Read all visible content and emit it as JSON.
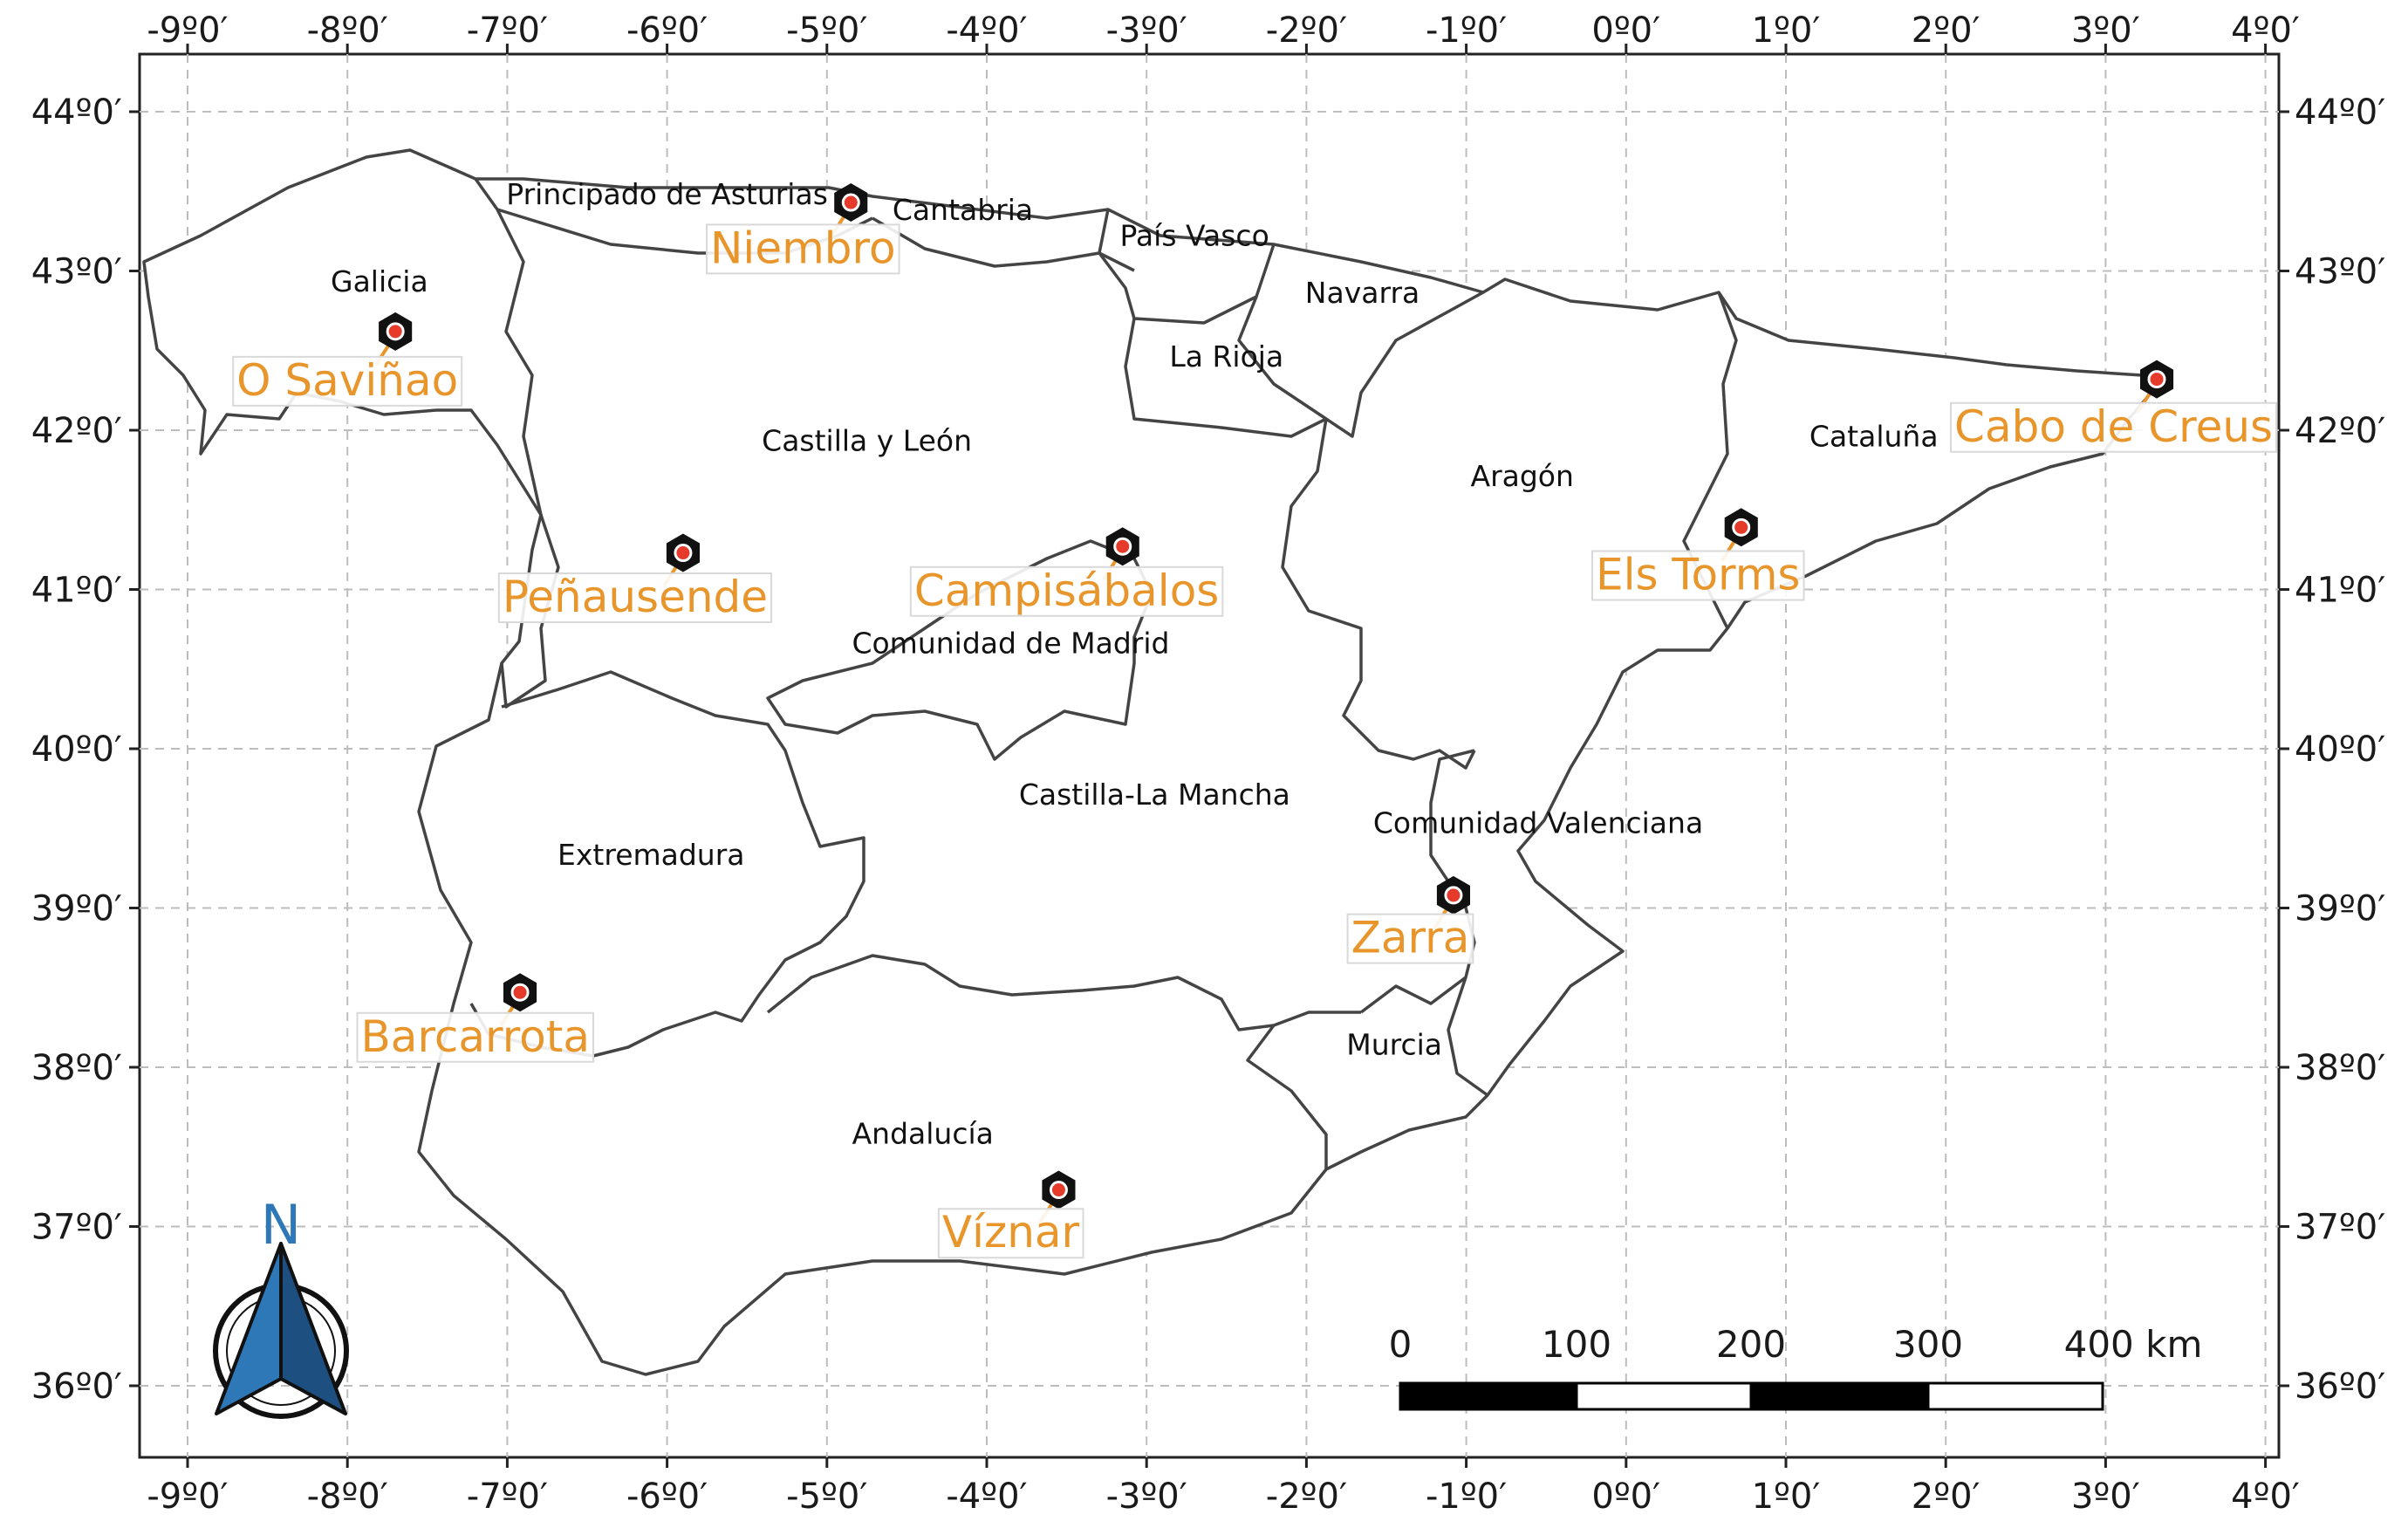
{
  "map": {
    "lon_ticks": [
      "-9º0′",
      "-8º0′",
      "-7º0′",
      "-6º0′",
      "-5º0′",
      "-4º0′",
      "-3º0′",
      "-2º0′",
      "-1º0′",
      "0º0′",
      "1º0′",
      "2º0′",
      "3º0′",
      "4º0′"
    ],
    "lat_ticks": [
      "44º0′",
      "43º0′",
      "42º0′",
      "41º0′",
      "40º0′",
      "39º0′",
      "38º0′",
      "37º0′",
      "36º0′"
    ],
    "regions": [
      {
        "name": "Principado de Asturias",
        "lon": -6.0,
        "lat": 43.42
      },
      {
        "name": "Cantabria",
        "lon": -4.15,
        "lat": 43.32
      },
      {
        "name": "País Vasco",
        "lon": -2.7,
        "lat": 43.16
      },
      {
        "name": "Galicia",
        "lon": -7.8,
        "lat": 42.87
      },
      {
        "name": "Navarra",
        "lon": -1.65,
        "lat": 42.8
      },
      {
        "name": "La Rioja",
        "lon": -2.5,
        "lat": 42.4
      },
      {
        "name": "Castilla y León",
        "lon": -4.75,
        "lat": 41.87
      },
      {
        "name": "Cataluña",
        "lon": 1.55,
        "lat": 41.9
      },
      {
        "name": "Aragón",
        "lon": -0.65,
        "lat": 41.65
      },
      {
        "name": "Comunidad de Madrid",
        "lon": -3.85,
        "lat": 40.6
      },
      {
        "name": "Castilla-La Mancha",
        "lon": -2.95,
        "lat": 39.65
      },
      {
        "name": "Comunidad Valenciana",
        "lon": -0.55,
        "lat": 39.47
      },
      {
        "name": "Extremadura",
        "lon": -6.1,
        "lat": 39.27
      },
      {
        "name": "Murcia",
        "lon": -1.45,
        "lat": 38.08
      },
      {
        "name": "Andalucía",
        "lon": -4.4,
        "lat": 37.52
      }
    ],
    "sites": [
      {
        "name": "Niembro",
        "lon": -4.85,
        "lat": 43.43,
        "label_lon": -5.15,
        "label_lat": 43.05
      },
      {
        "name": "O Saviñao",
        "lon": -7.7,
        "lat": 42.62,
        "label_lon": -8.0,
        "label_lat": 42.22
      },
      {
        "name": "Peñausende",
        "lon": -5.9,
        "lat": 41.23,
        "label_lon": -6.2,
        "label_lat": 40.86
      },
      {
        "name": "Campisábalos",
        "lon": -3.15,
        "lat": 41.27,
        "label_lon": -3.5,
        "label_lat": 40.9
      },
      {
        "name": "Els Torms",
        "lon": 0.72,
        "lat": 41.39,
        "label_lon": 0.45,
        "label_lat": 41.0
      },
      {
        "name": "Cabo de Creus",
        "lon": 3.32,
        "lat": 42.32,
        "label_lon": 3.05,
        "label_lat": 41.93
      },
      {
        "name": "Zarra",
        "lon": -1.08,
        "lat": 39.08,
        "label_lon": -1.35,
        "label_lat": 38.72
      },
      {
        "name": "Barcarrota",
        "lon": -6.92,
        "lat": 38.47,
        "label_lon": -7.2,
        "label_lat": 38.1
      },
      {
        "name": "Víznar",
        "lon": -3.55,
        "lat": 37.23,
        "label_lon": -3.85,
        "label_lat": 36.87
      }
    ],
    "scale_bar": {
      "labels": [
        "0",
        "100",
        "200",
        "300",
        "400 km"
      ]
    },
    "north_label": "N",
    "colors": {
      "border": "#444444",
      "site_label": "#e8962b",
      "marker": "#111111",
      "marker_dot": "#e63a2a",
      "north": "#2f78b8"
    }
  }
}
